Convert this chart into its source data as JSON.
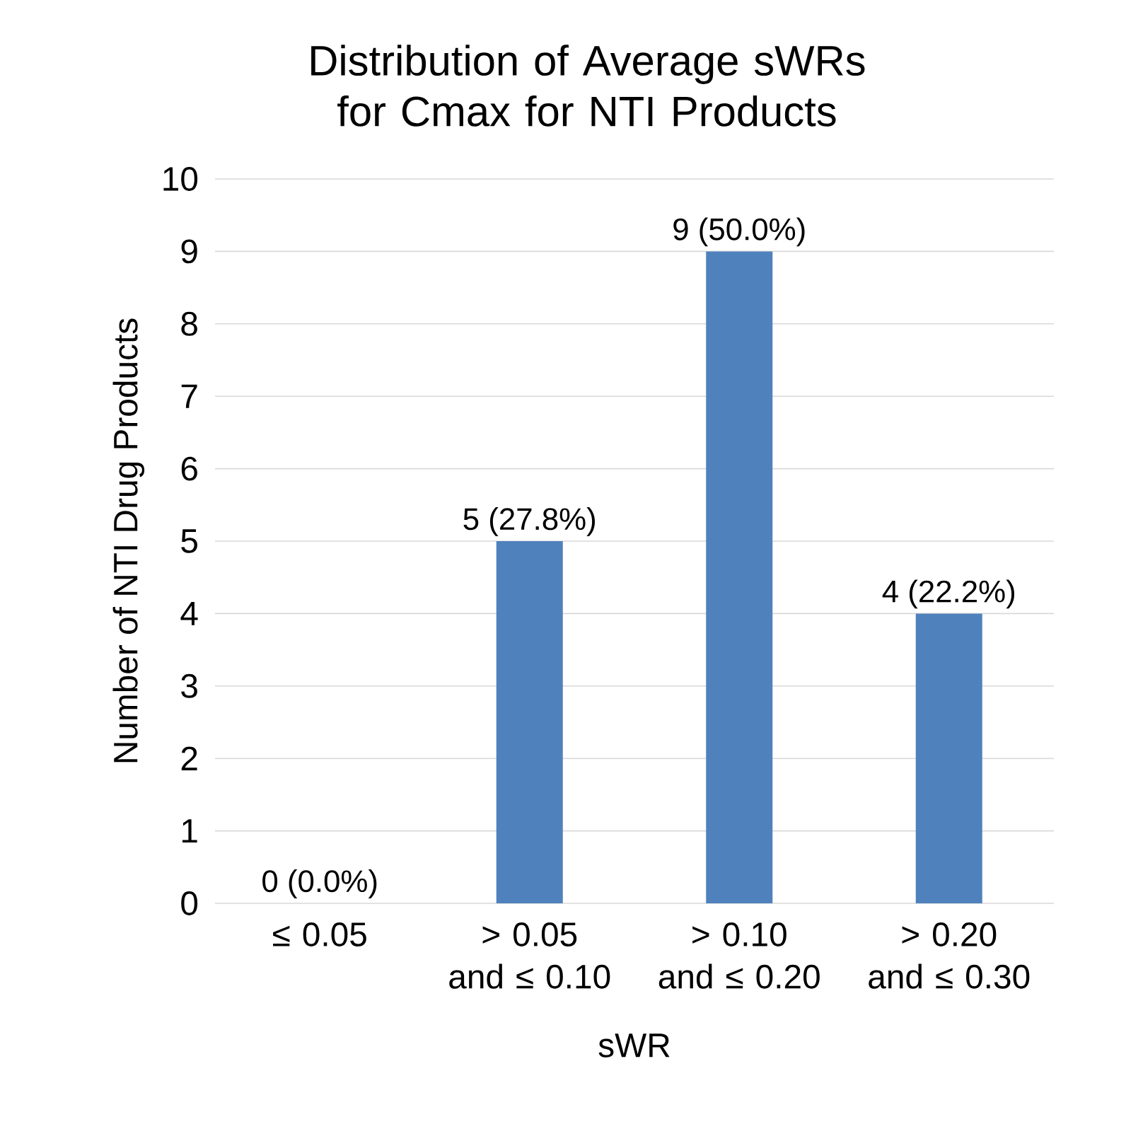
{
  "chart_data": {
    "type": "bar",
    "title": "Distribution of Average sWRs for Cmax for NTI Products",
    "xlabel": "sWR",
    "ylabel": "Number of NTI Drug Products",
    "categories": [
      "≤ 0.05",
      "> 0.05 and ≤ 0.10",
      "> 0.10 and ≤ 0.20",
      "> 0.20 and ≤ 0.30"
    ],
    "values": [
      0,
      5,
      9,
      4
    ],
    "value_labels": [
      "0 (0.0%)",
      "5 (27.8%)",
      "9 (50.0%)",
      "4 (22.2%)"
    ],
    "color": "#4f81bd",
    "ylim": [
      0,
      10
    ],
    "yticks": [
      0,
      1,
      2,
      3,
      4,
      5,
      6,
      7,
      8,
      9,
      10
    ],
    "grid": "y"
  }
}
